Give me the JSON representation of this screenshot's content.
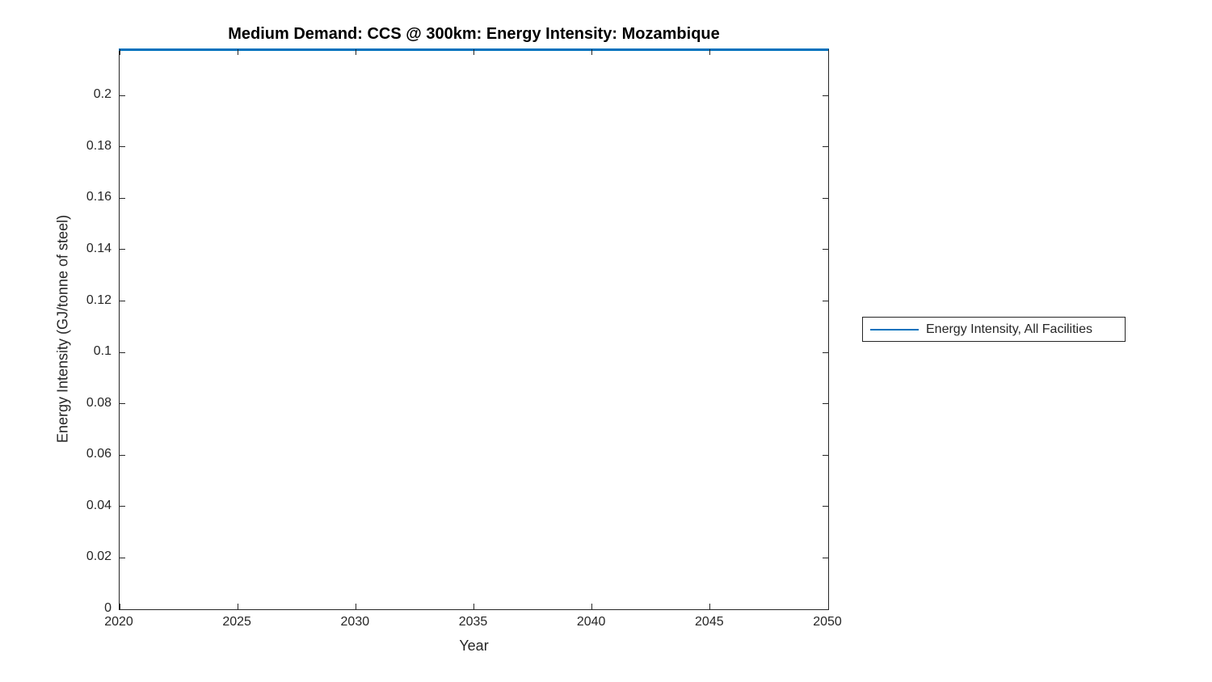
{
  "title": "Medium Demand: CCS @ 300km: Energy Intensity: Mozambique",
  "x_axis": {
    "label": "Year",
    "tick_labels": [
      "2020",
      "2025",
      "2030",
      "2035",
      "2040",
      "2045",
      "2050"
    ]
  },
  "y_axis": {
    "label": "Energy Intensity (GJ/tonne of steel)",
    "tick_labels": [
      "0",
      "0.02",
      "0.04",
      "0.06",
      "0.08",
      "0.1",
      "0.12",
      "0.14",
      "0.16",
      "0.18",
      "0.2"
    ]
  },
  "legend": {
    "entries": [
      {
        "label": "Energy Intensity, All Facilities",
        "color": "#0072BD"
      }
    ]
  },
  "colors": {
    "line": "#0072BD",
    "axis": "#262626",
    "text": "#262626",
    "title": "#000000",
    "background": "#ffffff"
  },
  "chart_data": {
    "type": "line",
    "title": "Medium Demand: CCS @ 300km: Energy Intensity: Mozambique",
    "xlabel": "Year",
    "ylabel": "Energy Intensity (GJ/tonne of steel)",
    "xlim": [
      2020,
      2050
    ],
    "ylim": [
      0,
      0.218
    ],
    "x_ticks": [
      2020,
      2025,
      2030,
      2035,
      2040,
      2045,
      2050
    ],
    "y_ticks": [
      0,
      0.02,
      0.04,
      0.06,
      0.08,
      0.1,
      0.12,
      0.14,
      0.16,
      0.18,
      0.2
    ],
    "grid": false,
    "legend_position": "outside-right",
    "series": [
      {
        "name": "Energy Intensity, All Facilities",
        "color": "#0072BD",
        "x": [
          2020,
          2050
        ],
        "values": [
          0.218,
          0.218
        ]
      }
    ]
  }
}
